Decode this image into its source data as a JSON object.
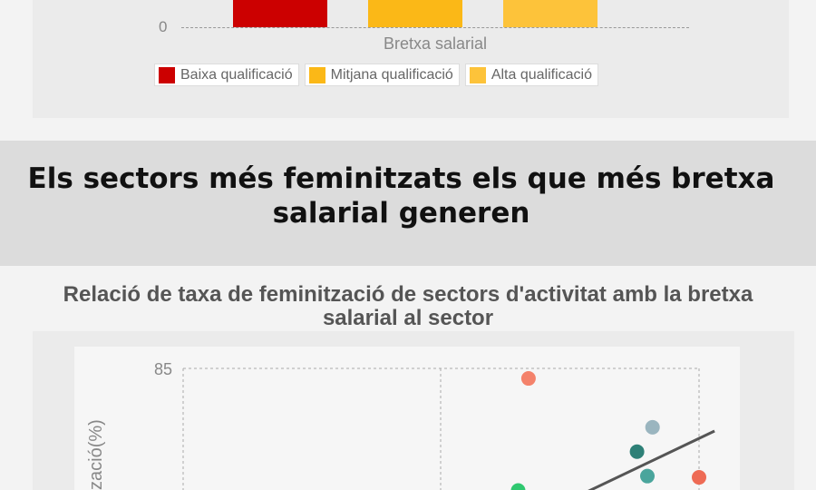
{
  "top_chart": {
    "zero_label": "0",
    "category": "Bretxa salarial",
    "legend": [
      {
        "label": "Baixa qualificació",
        "color": "#cc0000"
      },
      {
        "label": "Mitjana qualificació",
        "color": "#fbb817"
      },
      {
        "label": "Alta qualificació",
        "color": "#fdc33a"
      }
    ]
  },
  "banner": {
    "title": "Els sectors més feminitzats els que més bretxa salarial generen"
  },
  "chart_data": {
    "type": "scatter",
    "title": "Relació de taxa de feminització de sectors d'activitat amb la bretxa salarial al sector",
    "ylabel": "Taxa de feminització(%)",
    "ylabel_visible": "zació(%)",
    "y_tick_top": "85",
    "ylim_top": 85,
    "points": [
      {
        "x": 0.67,
        "y": 83.4,
        "color": "#f4826b"
      },
      {
        "x": 0.91,
        "y": 75.6,
        "color": "#9ab5bf"
      },
      {
        "x": 0.88,
        "y": 71.7,
        "color": "#2e8077"
      },
      {
        "x": 0.9,
        "y": 67.8,
        "color": "#4aa59c"
      },
      {
        "x": 1.0,
        "y": 67.6,
        "color": "#ee6b55"
      },
      {
        "x": 0.65,
        "y": 65.5,
        "color": "#2fc870"
      }
    ],
    "trendline": {
      "x1": 0.72,
      "y1": 62.8,
      "x2": 1.03,
      "y2": 75.0,
      "color": "#555555"
    },
    "grid": true
  }
}
